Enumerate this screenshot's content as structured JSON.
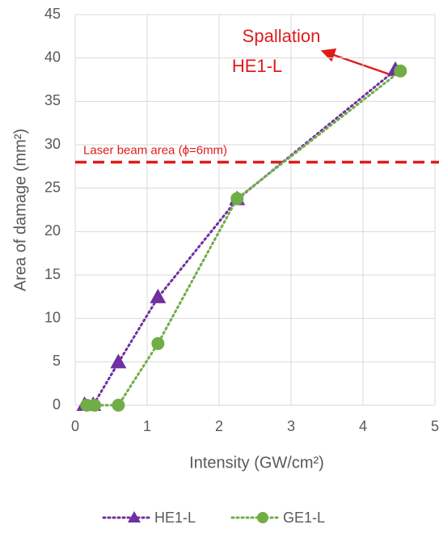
{
  "chart_data": {
    "type": "scatter-line",
    "x_label": "Intensity (GW/cm²)",
    "y_label": "Area of damage (mm²)",
    "xlim": [
      0,
      5
    ],
    "xticks": [
      0,
      1,
      2,
      3,
      4,
      5
    ],
    "ylim": [
      0,
      45
    ],
    "yticks": [
      0,
      5,
      10,
      15,
      20,
      25,
      30,
      35,
      40,
      45
    ],
    "grid": true,
    "legend": "bottom",
    "series": [
      {
        "name": "HE1-L",
        "color": "#7030a0",
        "marker": "triangle",
        "x": [
          0.13,
          0.25,
          0.6,
          1.15,
          2.25,
          4.45
        ],
        "values": [
          0,
          0,
          4.9,
          12.4,
          23.7,
          38.6
        ]
      },
      {
        "name": "GE1-L",
        "color": "#70ad47",
        "marker": "circle",
        "x": [
          0.16,
          0.27,
          0.6,
          1.15,
          2.25,
          4.52
        ],
        "values": [
          0,
          0,
          0,
          7.1,
          23.8,
          38.5
        ]
      }
    ],
    "reference_line": {
      "value": 28,
      "label": "Laser beam area (ϕ=6mm)",
      "color": "#e01b1b"
    },
    "annotation": {
      "lines": [
        "Spallation",
        "HE1-L"
      ],
      "color": "#e01b1b"
    }
  }
}
